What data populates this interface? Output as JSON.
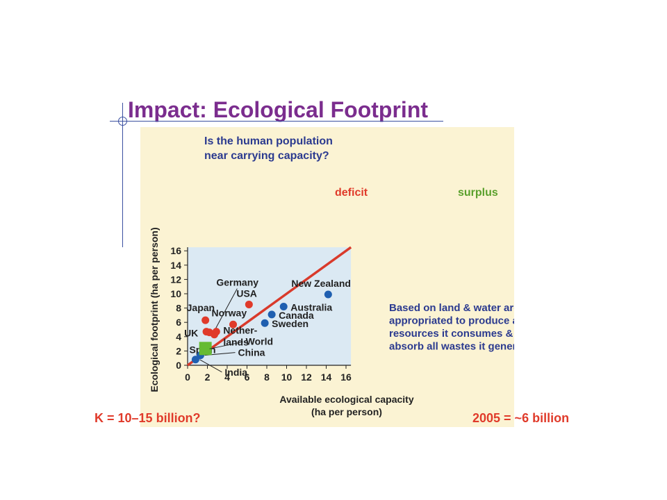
{
  "slide": {
    "title": "Impact: Ecological Footprint",
    "left_note": "K = 10–15 billion?",
    "right_note": "2005 = ~6 billion"
  },
  "chart_data": {
    "type": "scatter",
    "question_lines": [
      "Is the human population",
      "near carrying capacity?"
    ],
    "xlabel_lines": [
      "Available ecological capacity",
      "(ha per person)"
    ],
    "ylabel": "Ecological footprint (ha per person)",
    "xlim": [
      0,
      16.5
    ],
    "ylim": [
      0,
      16.5
    ],
    "xticks": [
      "0",
      "2",
      "4",
      "6",
      "8",
      "10",
      "12",
      "14",
      "16"
    ],
    "yticks": [
      "16",
      "14",
      "12",
      "10",
      "8",
      "6",
      "4",
      "2",
      "0"
    ],
    "region_labels": {
      "deficit": "deficit",
      "surplus": "surplus"
    },
    "note_lines": [
      "Based on land & water area",
      "appropriated to produce all",
      "resources it consumes & to",
      "absorb all wastes it generates"
    ],
    "colors": {
      "deficit": "#e03a2a",
      "surplus": "#1f5fb0",
      "world": "#66bb33",
      "line": "#d93a2b",
      "surplus_label": "#5aa02c",
      "question": "#2b3a8f"
    },
    "points": [
      {
        "name": "Japan",
        "x": 1.8,
        "y": 6.3,
        "group": "deficit"
      },
      {
        "name": "UK",
        "x": 1.9,
        "y": 4.7,
        "group": "deficit"
      },
      {
        "name": "Germany",
        "x": 2.2,
        "y": 4.6,
        "group": "deficit"
      },
      {
        "name": "Spain",
        "x": 2.7,
        "y": 4.3,
        "group": "deficit"
      },
      {
        "name": "Nether-\nlands",
        "x": 2.9,
        "y": 4.7,
        "group": "deficit"
      },
      {
        "name": "Norway",
        "x": 4.6,
        "y": 5.7,
        "group": "deficit"
      },
      {
        "name": "USA",
        "x": 6.2,
        "y": 8.5,
        "group": "deficit"
      },
      {
        "name": "India",
        "x": 0.8,
        "y": 0.8,
        "group": "surplus"
      },
      {
        "name": "China",
        "x": 1.3,
        "y": 1.4,
        "group": "surplus"
      },
      {
        "name": "Sweden",
        "x": 7.8,
        "y": 5.9,
        "group": "surplus"
      },
      {
        "name": "Canada",
        "x": 8.5,
        "y": 7.1,
        "group": "surplus"
      },
      {
        "name": "Australia",
        "x": 9.7,
        "y": 8.2,
        "group": "surplus"
      },
      {
        "name": "New Zealand",
        "x": 14.2,
        "y": 9.9,
        "group": "surplus"
      },
      {
        "name": "World",
        "x": 1.8,
        "y": 2.3,
        "group": "world"
      }
    ]
  }
}
